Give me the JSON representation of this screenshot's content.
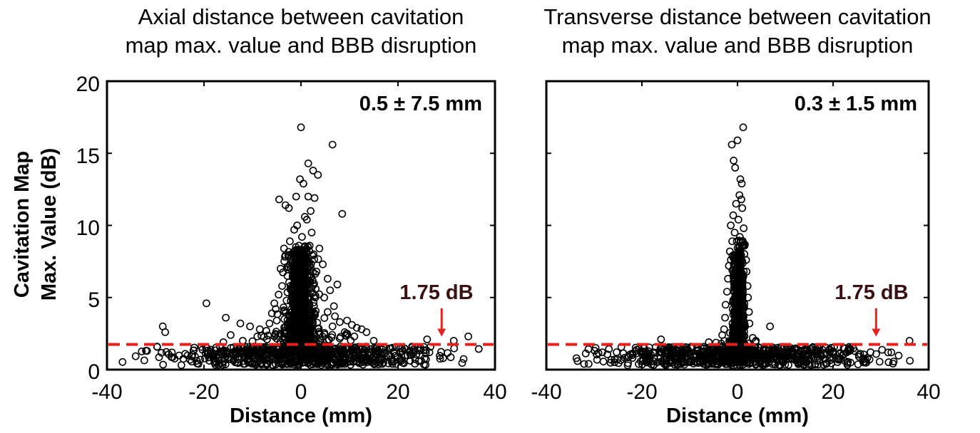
{
  "ylabel_lines": [
    "Cavitation Map",
    "Max. Value (dB)"
  ],
  "chart_data": [
    {
      "type": "scatter",
      "title_lines": [
        "Axial distance between cavitation",
        "map max. value and BBB disruption"
      ],
      "xlabel": "Distance (mm)",
      "xlim": [
        -40,
        40
      ],
      "ylim": [
        0,
        20
      ],
      "xticks": [
        "-40",
        "-20",
        "0",
        "20",
        "40"
      ],
      "yticks": [
        "0",
        "5",
        "10",
        "15",
        "20"
      ],
      "annotation": "0.5 ± 7.5 mm",
      "threshold": {
        "value": 1.75,
        "label": "1.75 dB",
        "arrow_x": 29,
        "color": "#e8211c"
      },
      "marker_color": "#000000",
      "points": [
        [
          0,
          16.8
        ],
        [
          6.5,
          15.6
        ],
        [
          1.5,
          14.3
        ],
        [
          2.5,
          13.8
        ],
        [
          3.5,
          13.5
        ],
        [
          -0.2,
          13.2
        ],
        [
          0.5,
          12.9
        ],
        [
          -1,
          12.0
        ],
        [
          1.5,
          12.0
        ],
        [
          -4.5,
          11.8
        ],
        [
          -3.2,
          11.4
        ],
        [
          2,
          11.0
        ],
        [
          2.8,
          11.9
        ],
        [
          8.5,
          10.8
        ],
        [
          -2.5,
          11.2
        ],
        [
          0.8,
          10.6
        ],
        [
          1.2,
          10.4
        ],
        [
          -0.8,
          10.0
        ],
        [
          -1.4,
          9.7
        ],
        [
          2.2,
          9.5
        ],
        [
          0.2,
          9.2
        ],
        [
          -2.3,
          8.9
        ],
        [
          -3.5,
          8.4
        ],
        [
          1.8,
          8.6
        ],
        [
          3.8,
          8.4
        ],
        [
          -0.3,
          8.2
        ],
        [
          2.6,
          8.0
        ],
        [
          -1.6,
          7.8
        ],
        [
          0.9,
          7.6
        ],
        [
          4.5,
          7.3
        ],
        [
          -4.2,
          7.0
        ],
        [
          3.2,
          6.8
        ],
        [
          -2.8,
          6.5
        ],
        [
          5.5,
          6.3
        ],
        [
          7.5,
          5.9
        ],
        [
          -3.9,
          5.8
        ],
        [
          6.0,
          5.5
        ],
        [
          -4.6,
          5.2
        ],
        [
          4.8,
          5.0
        ],
        [
          -5.5,
          4.6
        ],
        [
          6.8,
          4.4
        ],
        [
          -5.2,
          4.2
        ],
        [
          5.5,
          4.0
        ],
        [
          -6,
          3.9
        ],
        [
          7.0,
          3.7
        ],
        [
          -5,
          3.4
        ],
        [
          8.0,
          3.3
        ],
        [
          -6.5,
          3.2
        ],
        [
          6.5,
          3.0
        ],
        [
          -19.5,
          4.6
        ],
        [
          -15.5,
          3.6
        ],
        [
          -12.5,
          3.2
        ],
        [
          -10.5,
          3.0
        ],
        [
          -8.5,
          2.8
        ],
        [
          -14.5,
          2.4
        ],
        [
          9.5,
          3.4
        ],
        [
          10.5,
          3.1
        ],
        [
          11.5,
          2.9
        ],
        [
          12.5,
          2.8
        ],
        [
          13.5,
          2.6
        ],
        [
          11.0,
          2.3
        ],
        [
          9.0,
          2.6
        ],
        [
          -28.5,
          3.0
        ],
        [
          -28,
          2.6
        ],
        [
          -9,
          2.3
        ],
        [
          -12,
          2.0
        ],
        [
          -7,
          2.1
        ],
        [
          -16,
          1.9
        ],
        [
          26,
          2.1
        ],
        [
          34.5,
          2.3
        ],
        [
          31.5,
          2.0
        ],
        [
          15,
          2.0
        ]
      ],
      "clusters": [
        {
          "x": [
            -4.2,
            4.2
          ],
          "y": [
            2.0,
            8.2
          ],
          "n": 420
        },
        {
          "x": [
            -2.2,
            2.2
          ],
          "y": [
            1.5,
            8.6
          ],
          "n": 280
        },
        {
          "x": [
            -6.5,
            6.5
          ],
          "y": [
            1.0,
            4.2
          ],
          "n": 140
        },
        {
          "x": [
            -14,
            14
          ],
          "y": [
            0.9,
            2.7
          ],
          "n": 110
        },
        {
          "x": [
            -40,
            40
          ],
          "y": [
            0.3,
            1.6
          ],
          "n": 650
        }
      ],
      "seed": 7
    },
    {
      "type": "scatter",
      "title_lines": [
        "Transverse distance between cavitation",
        "map max. value and BBB disruption"
      ],
      "xlabel": "Distance (mm)",
      "xlim": [
        -40,
        40
      ],
      "ylim": [
        0,
        20
      ],
      "xticks": [
        "-40",
        "-20",
        "0",
        "20",
        "40"
      ],
      "yticks": [],
      "annotation": "0.3 ± 1.5 mm",
      "threshold": {
        "value": 1.75,
        "label": "1.75 dB",
        "arrow_x": 29,
        "color": "#e8211c"
      },
      "marker_color": "#000000",
      "points": [
        [
          1.2,
          16.8
        ],
        [
          0,
          15.9
        ],
        [
          -1.2,
          15.6
        ],
        [
          -0.8,
          14.5
        ],
        [
          -0.5,
          14.0
        ],
        [
          0.6,
          13.2
        ],
        [
          0.9,
          12.9
        ],
        [
          0.4,
          12.1
        ],
        [
          0.8,
          11.8
        ],
        [
          -0.3,
          11.5
        ],
        [
          1.0,
          11.2
        ],
        [
          -0.9,
          10.7
        ],
        [
          0.2,
          10.4
        ],
        [
          -1.4,
          10.0
        ],
        [
          1.3,
          9.8
        ],
        [
          -0.6,
          9.5
        ],
        [
          0.5,
          9.2
        ],
        [
          -1.1,
          8.9
        ],
        [
          1.5,
          8.6
        ],
        [
          -1.6,
          8.2
        ],
        [
          -0.2,
          7.9
        ],
        [
          1.8,
          7.6
        ],
        [
          -1.8,
          7.2
        ],
        [
          1.9,
          6.8
        ],
        [
          -2.0,
          6.3
        ],
        [
          2.1,
          5.8
        ],
        [
          -2.2,
          5.4
        ],
        [
          2.2,
          5.0
        ],
        [
          -2.5,
          4.5
        ],
        [
          2.4,
          4.0
        ],
        [
          -2.6,
          3.6
        ],
        [
          2.5,
          3.2
        ],
        [
          -2.8,
          2.8
        ],
        [
          6.8,
          3.0
        ],
        [
          -3.2,
          2.4
        ],
        [
          3.2,
          2.2
        ],
        [
          -16,
          2.1
        ],
        [
          -6,
          1.9
        ],
        [
          36,
          2.0
        ]
      ],
      "clusters": [
        {
          "x": [
            -1.5,
            1.5
          ],
          "y": [
            1.5,
            8.0
          ],
          "n": 320
        },
        {
          "x": [
            -0.8,
            1.8
          ],
          "y": [
            1.5,
            9.0
          ],
          "n": 180
        },
        {
          "x": [
            -2.5,
            2.5
          ],
          "y": [
            1.0,
            3.5
          ],
          "n": 80
        },
        {
          "x": [
            -6,
            6
          ],
          "y": [
            0.8,
            2.0
          ],
          "n": 60
        },
        {
          "x": [
            -40,
            40
          ],
          "y": [
            0.3,
            1.6
          ],
          "n": 700
        }
      ],
      "seed": 13
    }
  ]
}
